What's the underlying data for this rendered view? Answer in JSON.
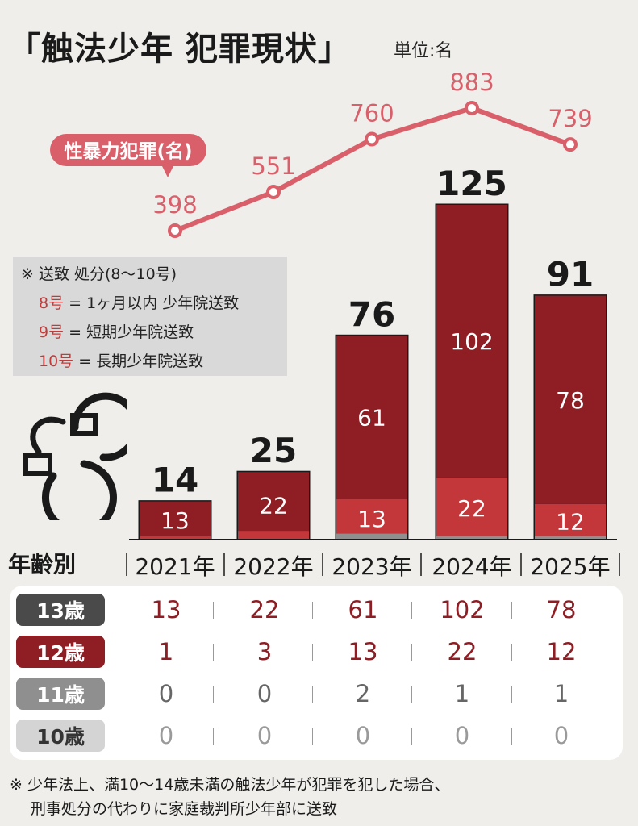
{
  "header": {
    "title": "「触法少年 犯罪現状」",
    "unit": "単位:名"
  },
  "chart_data": [
    {
      "type": "bar",
      "categories": [
        "2021年",
        "2022年",
        "2023年",
        "2024年",
        "2025年"
      ],
      "totals": [
        14,
        25,
        76,
        125,
        91
      ],
      "series": [
        {
          "name": "13歳",
          "values": [
            13,
            22,
            61,
            102,
            78
          ],
          "color": "#8e1d24"
        },
        {
          "name": "12歳",
          "values": [
            1,
            3,
            13,
            22,
            12
          ],
          "color": "#c3363a"
        },
        {
          "name": "11歳",
          "values": [
            0,
            0,
            2,
            1,
            1
          ],
          "color": "#8f8f8f"
        },
        {
          "name": "10歳",
          "values": [
            0,
            0,
            0,
            0,
            0
          ],
          "color": "#bdbdbd"
        }
      ],
      "ylim": [
        0,
        125
      ]
    },
    {
      "type": "line",
      "x": [
        "2021年",
        "2022年",
        "2023年",
        "2024年",
        "2025年"
      ],
      "series": [
        {
          "name": "性暴力犯罪(名)",
          "values": [
            398,
            551,
            760,
            883,
            739
          ],
          "color": "#d9606a"
        }
      ]
    }
  ],
  "legend_box": {
    "heading": "※ 送致 処分(8〜10号)",
    "items": [
      {
        "code": "8号",
        "rest": " = 1ヶ月以内 少年院送致"
      },
      {
        "code": "9号",
        "rest": " = 短期少年院送致"
      },
      {
        "code": "10号",
        "rest": " = 長期少年院送致"
      }
    ]
  },
  "icons": {
    "decoration": "handcuffs-icon"
  },
  "table": {
    "heading": "年齢別",
    "rows": [
      {
        "label": "13歳",
        "chip_color": "#4a4a4a",
        "text_color": "#8e1d24",
        "values": [
          "13",
          "22",
          "61",
          "102",
          "78"
        ]
      },
      {
        "label": "12歳",
        "chip_color": "#8e1d24",
        "text_color": "#8e1d24",
        "values": [
          "1",
          "3",
          "13",
          "22",
          "12"
        ]
      },
      {
        "label": "11歳",
        "chip_color": "#8f8f8f",
        "text_color": "#666666",
        "values": [
          "0",
          "0",
          "2",
          "1",
          "1"
        ]
      },
      {
        "label": "10歳",
        "chip_color": "#d4d4d4",
        "text_color": "#9a9a9a",
        "values": [
          "0",
          "0",
          "0",
          "0",
          "0"
        ]
      }
    ]
  },
  "footnote": {
    "line1": "※ 少年法上、満10〜14歳未満の触法少年が犯罪を犯した場合、",
    "line2": "刑事処分の代わりに家庭裁判所少年部に送致"
  }
}
